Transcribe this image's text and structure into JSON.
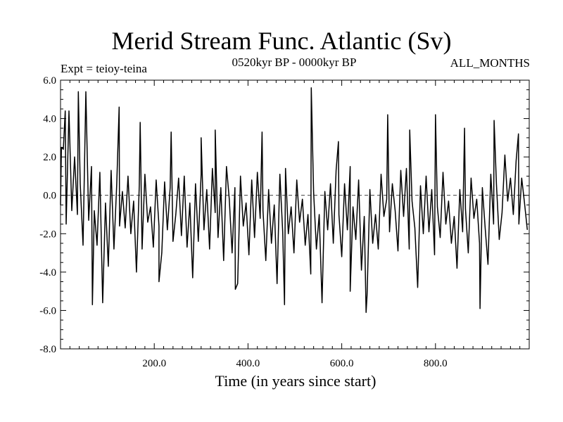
{
  "chart_data": {
    "type": "line",
    "title": "Merid Stream Func. Atlantic (Sv)",
    "subtitle_left": "Expt = teioy-teina",
    "subtitle_center": "0520kyr BP - 0000kyr BP",
    "subtitle_right": "ALL_MONTHS",
    "xlabel": "Time (in years since start)",
    "ylabel": "",
    "xlim": [
      0,
      1000
    ],
    "ylim": [
      -8,
      6
    ],
    "xticks": [
      200,
      400,
      600,
      800
    ],
    "xtick_labels": [
      "200.0",
      "400.0",
      "600.0",
      "800.0"
    ],
    "yticks": [
      6,
      4,
      2,
      0,
      -2,
      -4,
      -6,
      -8
    ],
    "ytick_labels": [
      "6.0",
      "4.0",
      "2.0",
      "0.0",
      "-2.0",
      "-4.0",
      "-6.0",
      "-8.0"
    ],
    "zero_line": true,
    "series": [
      {
        "name": "Merid Stream Func. Atlantic",
        "x": [
          0,
          6,
          12,
          18,
          24,
          30,
          36,
          42,
          48,
          54,
          60,
          66,
          72,
          78,
          84,
          90,
          96,
          102,
          108,
          114,
          120,
          126,
          132,
          138,
          144,
          150,
          156,
          162,
          168,
          174,
          180,
          186,
          192,
          198,
          204,
          210,
          216,
          222,
          228,
          234,
          240,
          246,
          252,
          258,
          264,
          270,
          276,
          282,
          288,
          294,
          300,
          306,
          312,
          318,
          324,
          330,
          336,
          342,
          348,
          354,
          360,
          366,
          372,
          378,
          384,
          390,
          396,
          402,
          408,
          414,
          420,
          426,
          432,
          438,
          444,
          450,
          456,
          462,
          468,
          474,
          480,
          486,
          492,
          498,
          504,
          510,
          516,
          522,
          528,
          534,
          540,
          546,
          552,
          558,
          564,
          570,
          576,
          582,
          588,
          594,
          600,
          606,
          612,
          618,
          624,
          630,
          636,
          642,
          648,
          654,
          660,
          666,
          672,
          678,
          684,
          690,
          696,
          702,
          708,
          714,
          720,
          726,
          732,
          738,
          744,
          750,
          756,
          762,
          768,
          774,
          780,
          786,
          792,
          798,
          804,
          810,
          816,
          822,
          828,
          834,
          840,
          846,
          852,
          858,
          864,
          870,
          876,
          882,
          888,
          894,
          900,
          906,
          912,
          918,
          924,
          930,
          936,
          942,
          948,
          954,
          960,
          966,
          972,
          978,
          984,
          990,
          996
        ],
        "values": [
          -0.5,
          2.4,
          -1.5,
          4.4,
          -0.8,
          2.0,
          -1.0,
          0.6,
          -2.6,
          5.4,
          -1.3,
          1.5,
          -0.8,
          -2.6,
          1.2,
          -5.6,
          -0.4,
          -3.7,
          1.3,
          -2.8,
          0.6,
          -1.6,
          0.2,
          -1.7,
          1.0,
          -2.0,
          -0.3,
          -4.0,
          0.5,
          -2.8,
          1.1,
          -1.4,
          -0.6,
          -2.7,
          0.8,
          -1.6,
          -3.0,
          0.7,
          -1.8,
          0.4,
          -2.4,
          -1.0,
          0.9,
          -2.1,
          1.0,
          -2.7,
          -0.4,
          -4.3,
          0.6,
          -2.4,
          1.1,
          -1.8,
          0.3,
          -2.8,
          1.4,
          -0.9,
          -2.2,
          0.4,
          -3.4,
          1.5,
          -0.2,
          -3.0,
          0.4,
          -4.6,
          1.0,
          -1.6,
          -0.4,
          -3.1,
          0.8,
          -2.2,
          1.2,
          -1.2,
          -0.8,
          -3.4,
          0.3,
          -2.5,
          -0.5,
          -4.6,
          1.1,
          -1.9,
          1.4,
          -2.0,
          -0.6,
          -3.0,
          0.8,
          -1.4,
          -0.2,
          -2.6,
          -1.0,
          -4.1,
          0.2,
          -2.8,
          -1.0,
          -5.6,
          0.2,
          -1.8,
          0.6,
          -2.5,
          1.3,
          -1.0,
          -3.2,
          0.6,
          -1.8,
          1.5,
          -0.6,
          -2.3,
          0.8,
          -3.9,
          -1.1,
          -5.2,
          0.3,
          -2.5,
          -1.0,
          -2.8,
          1.1,
          -1.1,
          -0.2,
          -1.9,
          0.6,
          -0.8,
          -2.9,
          1.3,
          -1.1,
          1.4,
          -2.8,
          -0.3,
          -1.7,
          -4.8,
          0.5,
          -2.0,
          1.0,
          -1.9,
          0.3,
          -3.1,
          -0.6,
          -2.2,
          1.2,
          -1.5,
          -0.3,
          -2.5,
          -1.1,
          -3.8,
          0.3,
          -1.9,
          -0.7,
          -3.0,
          0.9,
          -1.2,
          -0.2,
          -2.5,
          0.4,
          -1.7,
          -3.6,
          1.1,
          -1.5,
          0.6,
          -2.3,
          -0.9,
          2.1,
          -0.3,
          0.9,
          -1.0,
          1.8,
          -1.5,
          0.9,
          -0.4,
          -1.8
        ]
      }
    ],
    "peaks": [
      {
        "x": 2,
        "y": 2.5
      },
      {
        "x": 10,
        "y": 4.4
      },
      {
        "x": 38,
        "y": 5.4
      },
      {
        "x": 68,
        "y": -5.7
      },
      {
        "x": 125,
        "y": 4.6
      },
      {
        "x": 170,
        "y": 3.8
      },
      {
        "x": 210,
        "y": -4.5
      },
      {
        "x": 236,
        "y": 3.3
      },
      {
        "x": 300,
        "y": 3.0
      },
      {
        "x": 330,
        "y": 3.4
      },
      {
        "x": 373,
        "y": -4.9
      },
      {
        "x": 430,
        "y": 3.3
      },
      {
        "x": 478,
        "y": -5.7
      },
      {
        "x": 535,
        "y": 5.6
      },
      {
        "x": 593,
        "y": 2.8
      },
      {
        "x": 618,
        "y": -5.0
      },
      {
        "x": 652,
        "y": -6.1
      },
      {
        "x": 698,
        "y": 4.2
      },
      {
        "x": 745,
        "y": 3.4
      },
      {
        "x": 800,
        "y": 4.2
      },
      {
        "x": 862,
        "y": 3.5
      },
      {
        "x": 895,
        "y": -5.9
      },
      {
        "x": 925,
        "y": 3.9
      },
      {
        "x": 977,
        "y": 3.2
      }
    ]
  }
}
